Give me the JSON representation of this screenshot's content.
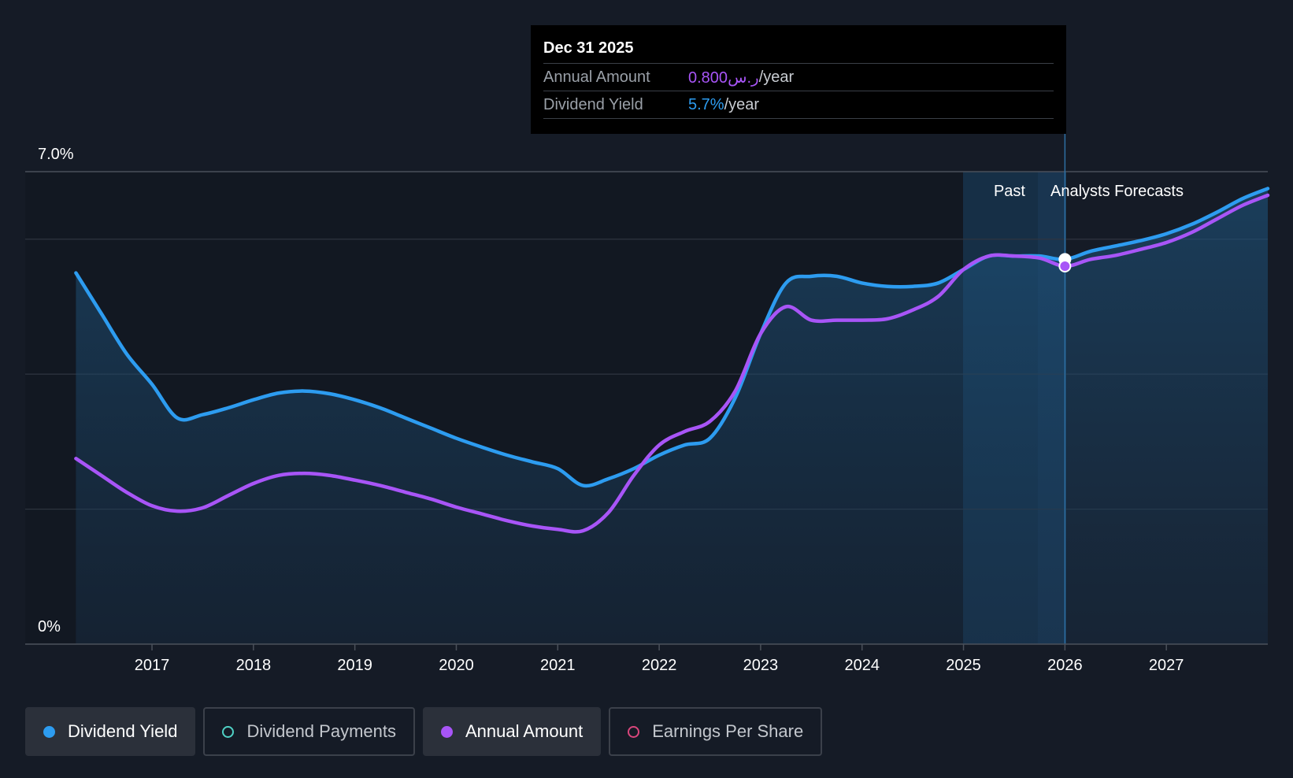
{
  "tooltip": {
    "date": "Dec 31 2025",
    "rows": [
      {
        "label": "Annual Amount",
        "value": "0.800ر.س",
        "unit": "/year"
      },
      {
        "label": "Dividend Yield",
        "value": "5.7%",
        "unit": "/year"
      }
    ]
  },
  "regions": {
    "past_label": "Past",
    "forecast_label": "Analysts Forecasts"
  },
  "legend": {
    "items": [
      {
        "label": "Dividend Yield",
        "color": "#2d9cf0",
        "active": true
      },
      {
        "label": "Dividend Payments",
        "color": "#4fd1c5",
        "active": false
      },
      {
        "label": "Annual Amount",
        "color": "#a855f7",
        "active": true
      },
      {
        "label": "Earnings Per Share",
        "color": "#d9467c",
        "active": false
      }
    ]
  },
  "chart_data": {
    "type": "line",
    "xlim": [
      2015.75,
      2028.0
    ],
    "ylim": [
      0,
      7.0
    ],
    "y_tick_labels": [
      "0%",
      "7.0%"
    ],
    "x_ticks": [
      2017,
      2018,
      2019,
      2020,
      2021,
      2022,
      2023,
      2024,
      2025,
      2026,
      2027
    ],
    "x_tick_labels": [
      "2017",
      "2018",
      "2019",
      "2020",
      "2021",
      "2022",
      "2023",
      "2024",
      "2025",
      "2026",
      "2027"
    ],
    "grid": true,
    "past_forecast_split": 2025.25,
    "highlight_x": 2026.0,
    "series": [
      {
        "name": "Dividend Yield",
        "color": "#2d9cf0",
        "filled": true,
        "points": [
          [
            2016.25,
            5.5
          ],
          [
            2016.5,
            4.9
          ],
          [
            2016.75,
            4.3
          ],
          [
            2017.0,
            3.85
          ],
          [
            2017.25,
            3.35
          ],
          [
            2017.5,
            3.4
          ],
          [
            2017.75,
            3.5
          ],
          [
            2018.0,
            3.62
          ],
          [
            2018.25,
            3.72
          ],
          [
            2018.5,
            3.75
          ],
          [
            2018.75,
            3.71
          ],
          [
            2019.0,
            3.62
          ],
          [
            2019.25,
            3.5
          ],
          [
            2019.5,
            3.35
          ],
          [
            2019.75,
            3.2
          ],
          [
            2020.0,
            3.05
          ],
          [
            2020.25,
            2.92
          ],
          [
            2020.5,
            2.8
          ],
          [
            2020.75,
            2.7
          ],
          [
            2021.0,
            2.6
          ],
          [
            2021.25,
            2.35
          ],
          [
            2021.5,
            2.45
          ],
          [
            2021.75,
            2.6
          ],
          [
            2022.0,
            2.8
          ],
          [
            2022.25,
            2.95
          ],
          [
            2022.5,
            3.05
          ],
          [
            2022.75,
            3.65
          ],
          [
            2023.0,
            4.6
          ],
          [
            2023.25,
            5.35
          ],
          [
            2023.5,
            5.45
          ],
          [
            2023.75,
            5.45
          ],
          [
            2024.0,
            5.35
          ],
          [
            2024.25,
            5.3
          ],
          [
            2024.5,
            5.3
          ],
          [
            2024.75,
            5.35
          ],
          [
            2025.0,
            5.55
          ],
          [
            2025.25,
            5.75
          ],
          [
            2025.5,
            5.75
          ],
          [
            2025.75,
            5.75
          ],
          [
            2026.0,
            5.7
          ],
          [
            2026.25,
            5.82
          ],
          [
            2026.5,
            5.9
          ],
          [
            2026.75,
            5.98
          ],
          [
            2027.0,
            6.08
          ],
          [
            2027.25,
            6.22
          ],
          [
            2027.5,
            6.4
          ],
          [
            2027.75,
            6.6
          ],
          [
            2028.0,
            6.75
          ]
        ]
      },
      {
        "name": "Annual Amount",
        "color": "#a855f7",
        "filled": false,
        "points": [
          [
            2016.25,
            2.75
          ],
          [
            2016.5,
            2.5
          ],
          [
            2016.75,
            2.25
          ],
          [
            2017.0,
            2.05
          ],
          [
            2017.25,
            1.97
          ],
          [
            2017.5,
            2.02
          ],
          [
            2017.75,
            2.2
          ],
          [
            2018.0,
            2.38
          ],
          [
            2018.25,
            2.5
          ],
          [
            2018.5,
            2.53
          ],
          [
            2018.75,
            2.5
          ],
          [
            2019.0,
            2.43
          ],
          [
            2019.25,
            2.35
          ],
          [
            2019.5,
            2.25
          ],
          [
            2019.75,
            2.15
          ],
          [
            2020.0,
            2.03
          ],
          [
            2020.25,
            1.93
          ],
          [
            2020.5,
            1.83
          ],
          [
            2020.75,
            1.75
          ],
          [
            2021.0,
            1.7
          ],
          [
            2021.25,
            1.68
          ],
          [
            2021.5,
            1.95
          ],
          [
            2021.75,
            2.5
          ],
          [
            2022.0,
            2.95
          ],
          [
            2022.25,
            3.15
          ],
          [
            2022.5,
            3.3
          ],
          [
            2022.75,
            3.75
          ],
          [
            2023.0,
            4.6
          ],
          [
            2023.25,
            5.0
          ],
          [
            2023.5,
            4.8
          ],
          [
            2023.75,
            4.8
          ],
          [
            2024.0,
            4.8
          ],
          [
            2024.25,
            4.82
          ],
          [
            2024.5,
            4.95
          ],
          [
            2024.75,
            5.15
          ],
          [
            2025.0,
            5.55
          ],
          [
            2025.25,
            5.75
          ],
          [
            2025.5,
            5.75
          ],
          [
            2025.75,
            5.72
          ],
          [
            2026.0,
            5.6
          ],
          [
            2026.25,
            5.7
          ],
          [
            2026.5,
            5.76
          ],
          [
            2026.75,
            5.85
          ],
          [
            2027.0,
            5.95
          ],
          [
            2027.25,
            6.1
          ],
          [
            2027.5,
            6.3
          ],
          [
            2027.75,
            6.5
          ],
          [
            2028.0,
            6.65
          ]
        ]
      }
    ]
  }
}
